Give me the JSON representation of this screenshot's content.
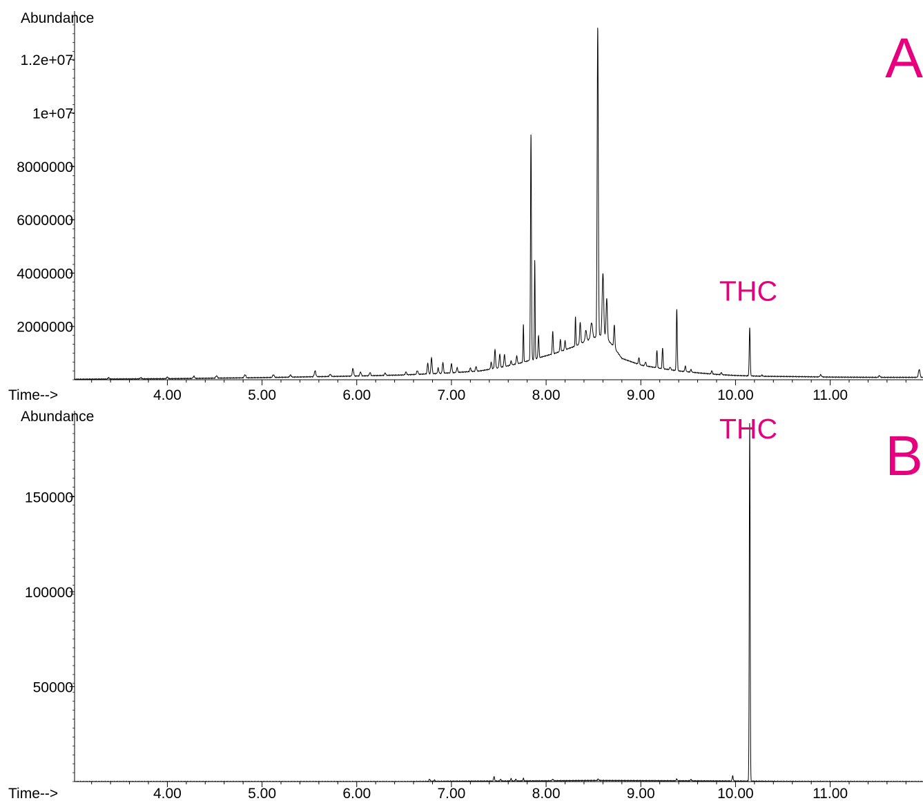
{
  "chart_data": [
    {
      "type": "line",
      "panel_label": "A",
      "ylabel": "Abundance",
      "xlabel": "Time-->",
      "xlim": [
        3.02,
        11.98
      ],
      "ylim": [
        0,
        13300000
      ],
      "x_ticks": [
        "4.00",
        "5.00",
        "6.00",
        "7.00",
        "8.00",
        "9.00",
        "10.00",
        "11.00"
      ],
      "y_ticks": [
        "2000000",
        "4000000",
        "6000000",
        "8000000",
        "1e+07",
        "1.2e+07"
      ],
      "annotations": [
        {
          "text": "THC",
          "x": 10.15,
          "y": 2600000
        }
      ],
      "baseline": [
        [
          3.02,
          20000
        ],
        [
          3.5,
          30000
        ],
        [
          4.0,
          40000
        ],
        [
          4.5,
          60000
        ],
        [
          5.0,
          80000
        ],
        [
          5.5,
          110000
        ],
        [
          6.0,
          140000
        ],
        [
          6.5,
          180000
        ],
        [
          7.0,
          260000
        ],
        [
          7.3,
          330000
        ],
        [
          7.5,
          450000
        ],
        [
          7.7,
          600000
        ],
        [
          7.9,
          800000
        ],
        [
          8.1,
          1000000
        ],
        [
          8.3,
          1250000
        ],
        [
          8.45,
          1500000
        ],
        [
          8.6,
          1700000
        ],
        [
          8.7,
          1300000
        ],
        [
          8.8,
          800000
        ],
        [
          9.0,
          550000
        ],
        [
          9.2,
          430000
        ],
        [
          9.4,
          330000
        ],
        [
          9.6,
          260000
        ],
        [
          9.8,
          200000
        ],
        [
          10.0,
          160000
        ],
        [
          10.3,
          130000
        ],
        [
          10.6,
          120000
        ],
        [
          11.0,
          100000
        ],
        [
          11.5,
          90000
        ],
        [
          11.98,
          90000
        ]
      ],
      "peaks": [
        [
          3.38,
          50000,
          0.008
        ],
        [
          3.72,
          40000,
          0.008
        ],
        [
          4.0,
          60000,
          0.008
        ],
        [
          4.28,
          80000,
          0.008
        ],
        [
          4.52,
          90000,
          0.008
        ],
        [
          4.82,
          120000,
          0.008
        ],
        [
          5.12,
          100000,
          0.008
        ],
        [
          5.3,
          80000,
          0.008
        ],
        [
          5.56,
          220000,
          0.008
        ],
        [
          5.72,
          80000,
          0.008
        ],
        [
          5.96,
          280000,
          0.007
        ],
        [
          6.04,
          150000,
          0.007
        ],
        [
          6.14,
          120000,
          0.007
        ],
        [
          6.3,
          90000,
          0.007
        ],
        [
          6.52,
          110000,
          0.007
        ],
        [
          6.64,
          140000,
          0.007
        ],
        [
          6.75,
          400000,
          0.006
        ],
        [
          6.79,
          600000,
          0.006
        ],
        [
          6.86,
          200000,
          0.006
        ],
        [
          6.91,
          400000,
          0.006
        ],
        [
          7.0,
          350000,
          0.006
        ],
        [
          7.06,
          180000,
          0.006
        ],
        [
          7.2,
          140000,
          0.006
        ],
        [
          7.26,
          180000,
          0.006
        ],
        [
          7.42,
          250000,
          0.006
        ],
        [
          7.46,
          700000,
          0.006
        ],
        [
          7.51,
          500000,
          0.006
        ],
        [
          7.56,
          450000,
          0.006
        ],
        [
          7.63,
          150000,
          0.006
        ],
        [
          7.69,
          300000,
          0.006
        ],
        [
          7.76,
          1400000,
          0.004
        ],
        [
          7.84,
          8500000,
          0.005
        ],
        [
          7.88,
          3700000,
          0.004
        ],
        [
          7.92,
          850000,
          0.005
        ],
        [
          8.07,
          850000,
          0.005
        ],
        [
          8.15,
          450000,
          0.005
        ],
        [
          8.2,
          350000,
          0.005
        ],
        [
          8.31,
          1100000,
          0.004
        ],
        [
          8.36,
          800000,
          0.006
        ],
        [
          8.42,
          400000,
          0.008
        ],
        [
          8.48,
          600000,
          0.01
        ],
        [
          8.545,
          11600000,
          0.006
        ],
        [
          8.6,
          2300000,
          0.008
        ],
        [
          8.64,
          1500000,
          0.007
        ],
        [
          8.72,
          850000,
          0.006
        ],
        [
          8.98,
          250000,
          0.006
        ],
        [
          9.05,
          150000,
          0.006
        ],
        [
          9.17,
          650000,
          0.005
        ],
        [
          9.23,
          780000,
          0.005
        ],
        [
          9.31,
          100000,
          0.006
        ],
        [
          9.38,
          2300000,
          0.005
        ],
        [
          9.47,
          200000,
          0.006
        ],
        [
          9.53,
          100000,
          0.006
        ],
        [
          9.75,
          120000,
          0.006
        ],
        [
          9.85,
          80000,
          0.006
        ],
        [
          10.15,
          1800000,
          0.005
        ],
        [
          10.28,
          40000,
          0.006
        ],
        [
          10.9,
          80000,
          0.008
        ],
        [
          11.52,
          60000,
          0.008
        ],
        [
          11.94,
          300000,
          0.008
        ]
      ]
    },
    {
      "type": "line",
      "panel_label": "B",
      "ylabel": "Abundance",
      "xlabel": "Time-->",
      "xlim": [
        3.02,
        11.98
      ],
      "ylim": [
        0,
        188000
      ],
      "x_ticks": [
        "4.00",
        "5.00",
        "6.00",
        "7.00",
        "8.00",
        "9.00",
        "10.00",
        "11.00"
      ],
      "y_ticks": [
        "50000",
        "100000",
        "150000"
      ],
      "annotations": [
        {
          "text": "THC",
          "x": 10.15,
          "y": 188000
        }
      ],
      "baseline": [
        [
          3.02,
          0
        ],
        [
          6.5,
          0
        ],
        [
          7.0,
          200
        ],
        [
          8.0,
          400
        ],
        [
          8.5,
          600
        ],
        [
          9.0,
          500
        ],
        [
          9.5,
          400
        ],
        [
          10.0,
          300
        ],
        [
          10.5,
          100
        ],
        [
          11.98,
          0
        ]
      ],
      "peaks": [
        [
          6.77,
          1200,
          0.006
        ],
        [
          6.82,
          700,
          0.006
        ],
        [
          7.45,
          2500,
          0.005
        ],
        [
          7.52,
          1000,
          0.005
        ],
        [
          7.63,
          1200,
          0.005
        ],
        [
          7.68,
          900,
          0.005
        ],
        [
          7.76,
          1300,
          0.005
        ],
        [
          8.07,
          800,
          0.006
        ],
        [
          8.55,
          700,
          0.006
        ],
        [
          9.38,
          900,
          0.006
        ],
        [
          9.53,
          700,
          0.006
        ],
        [
          9.97,
          2800,
          0.005
        ],
        [
          10.15,
          190000,
          0.0045
        ]
      ]
    }
  ]
}
